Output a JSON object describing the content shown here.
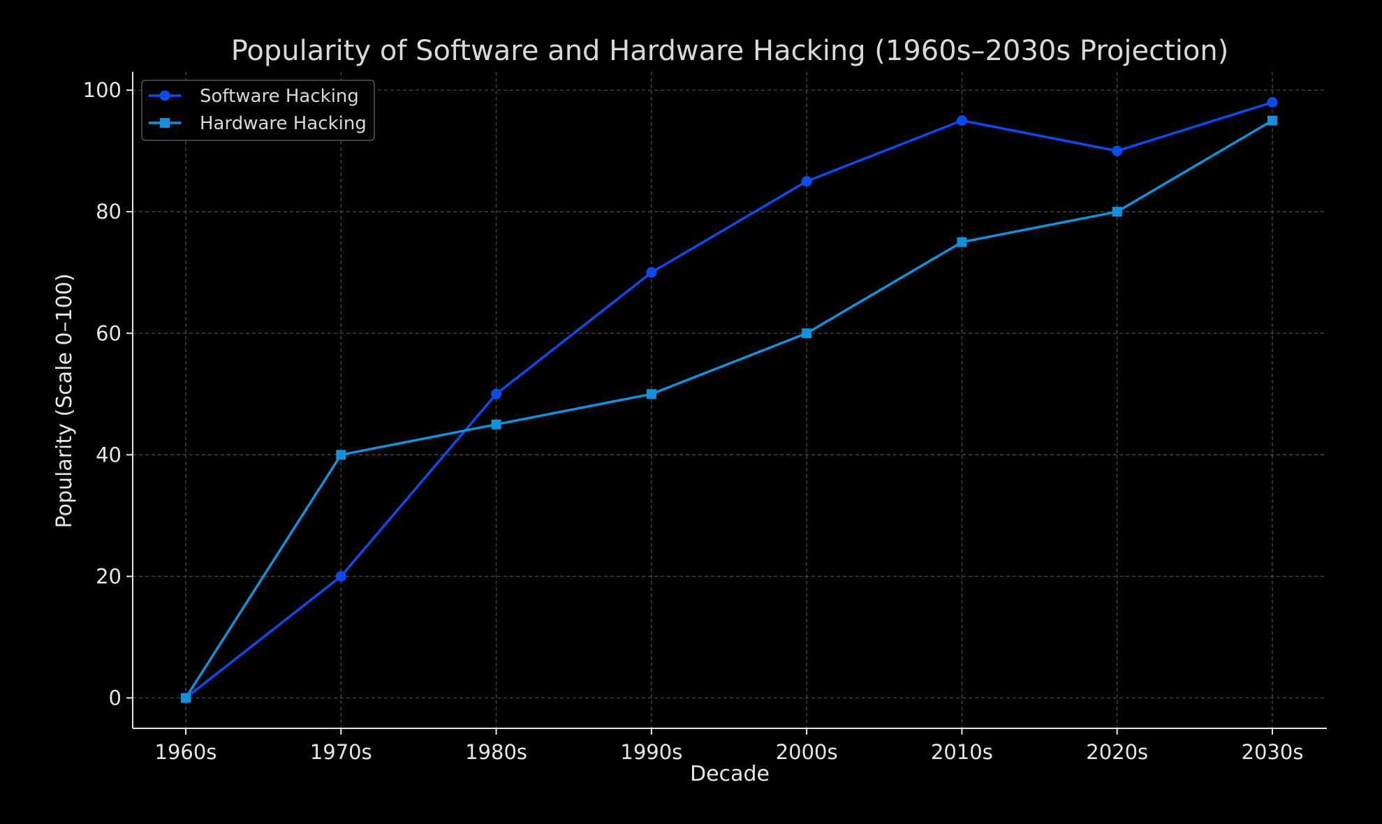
{
  "chart_data": {
    "type": "line",
    "title": "Popularity of Software and Hardware Hacking (1960s–2030s Projection)",
    "xlabel": "Decade",
    "ylabel": "Popularity (Scale 0–100)",
    "categories": [
      "1960s",
      "1970s",
      "1980s",
      "1990s",
      "2000s",
      "2010s",
      "2020s",
      "2030s"
    ],
    "y_ticks": [
      0,
      20,
      40,
      60,
      80,
      100
    ],
    "ylim": [
      -5,
      103
    ],
    "grid": true,
    "legend_position": "top-left",
    "series": [
      {
        "name": "Software Hacking",
        "marker": "circle",
        "color": "#0a4cf0",
        "values": [
          0,
          20,
          50,
          70,
          85,
          95,
          90,
          98
        ]
      },
      {
        "name": "Hardware Hacking",
        "marker": "square",
        "color": "#1192dc",
        "values": [
          0,
          40,
          45,
          50,
          60,
          75,
          80,
          95
        ]
      }
    ]
  }
}
